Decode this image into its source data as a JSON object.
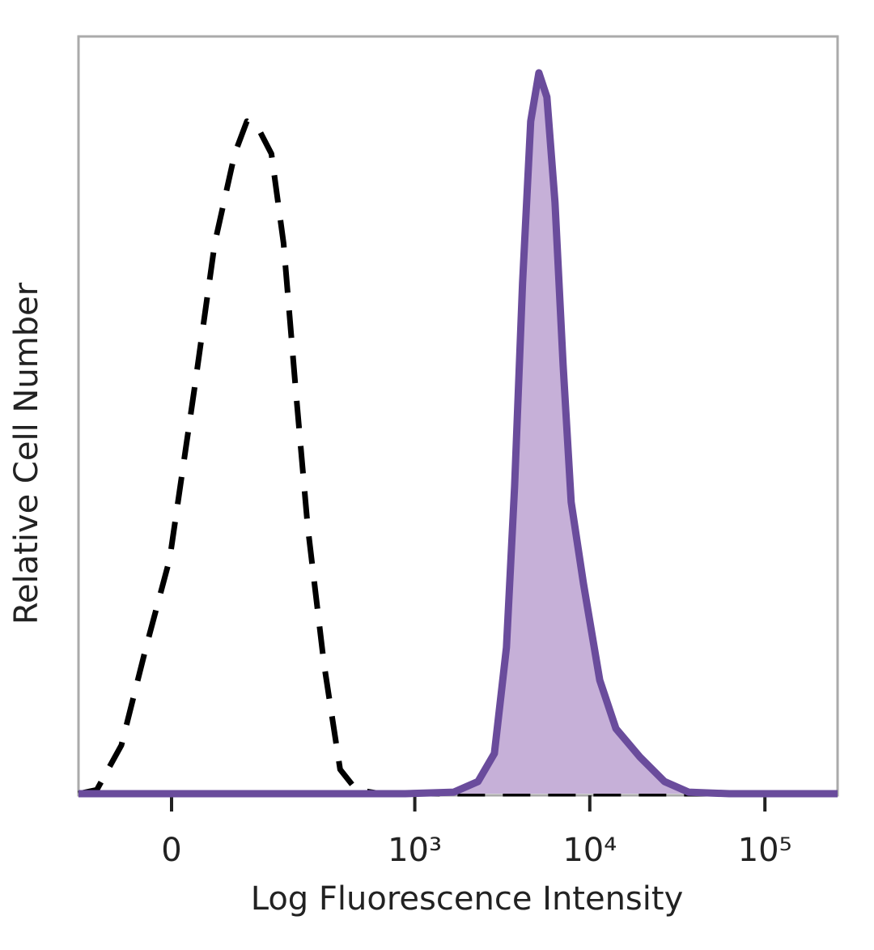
{
  "chart_data": {
    "type": "histogram-overlay",
    "xlabel": "Log Fluorescence Intensity",
    "ylabel": "Relative Cell Number",
    "xscale": "arcsinh",
    "xlim": [
      -127,
      260000
    ],
    "ylim": [
      0,
      100
    ],
    "xticks": [
      0,
      {
        "value": 1000,
        "label": "10³"
      },
      {
        "value": 10000,
        "label": "10⁴"
      },
      {
        "value": 100000,
        "label": "10⁵"
      }
    ],
    "series": [
      {
        "color": "#000000",
        "line_style": "dashed",
        "x": [
          -127,
          -94,
          -58,
          -28,
          -2,
          25,
          49,
          76,
          95,
          116,
          141,
          169,
          201,
          238,
          298,
          371,
          461,
          637,
          2558,
          260000
        ],
        "values": [
          0,
          0.5,
          6.4,
          19.3,
          31.0,
          53.5,
          72.7,
          84.5,
          88.8,
          87.7,
          84.5,
          72.7,
          53.5,
          35.3,
          17.1,
          3.2,
          0.5,
          0,
          0,
          0
        ]
      },
      {
        "color": "#6a4c9c",
        "fill": "#c6b0d8",
        "line_style": "solid",
        "x": [
          -127,
          881,
          1670,
          2300,
          2850,
          3340,
          3720,
          4130,
          4600,
          5120,
          5690,
          6330,
          7040,
          7830,
          9190,
          11400,
          14100,
          19400,
          26700,
          36700,
          62600,
          260000
        ],
        "values": [
          0,
          0,
          0.2,
          1.6,
          5.3,
          19.3,
          40.6,
          67.4,
          88.8,
          95.2,
          92.0,
          78.1,
          56.7,
          38.5,
          27.8,
          15.0,
          8.6,
          4.8,
          1.6,
          0.2,
          0,
          0
        ]
      }
    ]
  }
}
